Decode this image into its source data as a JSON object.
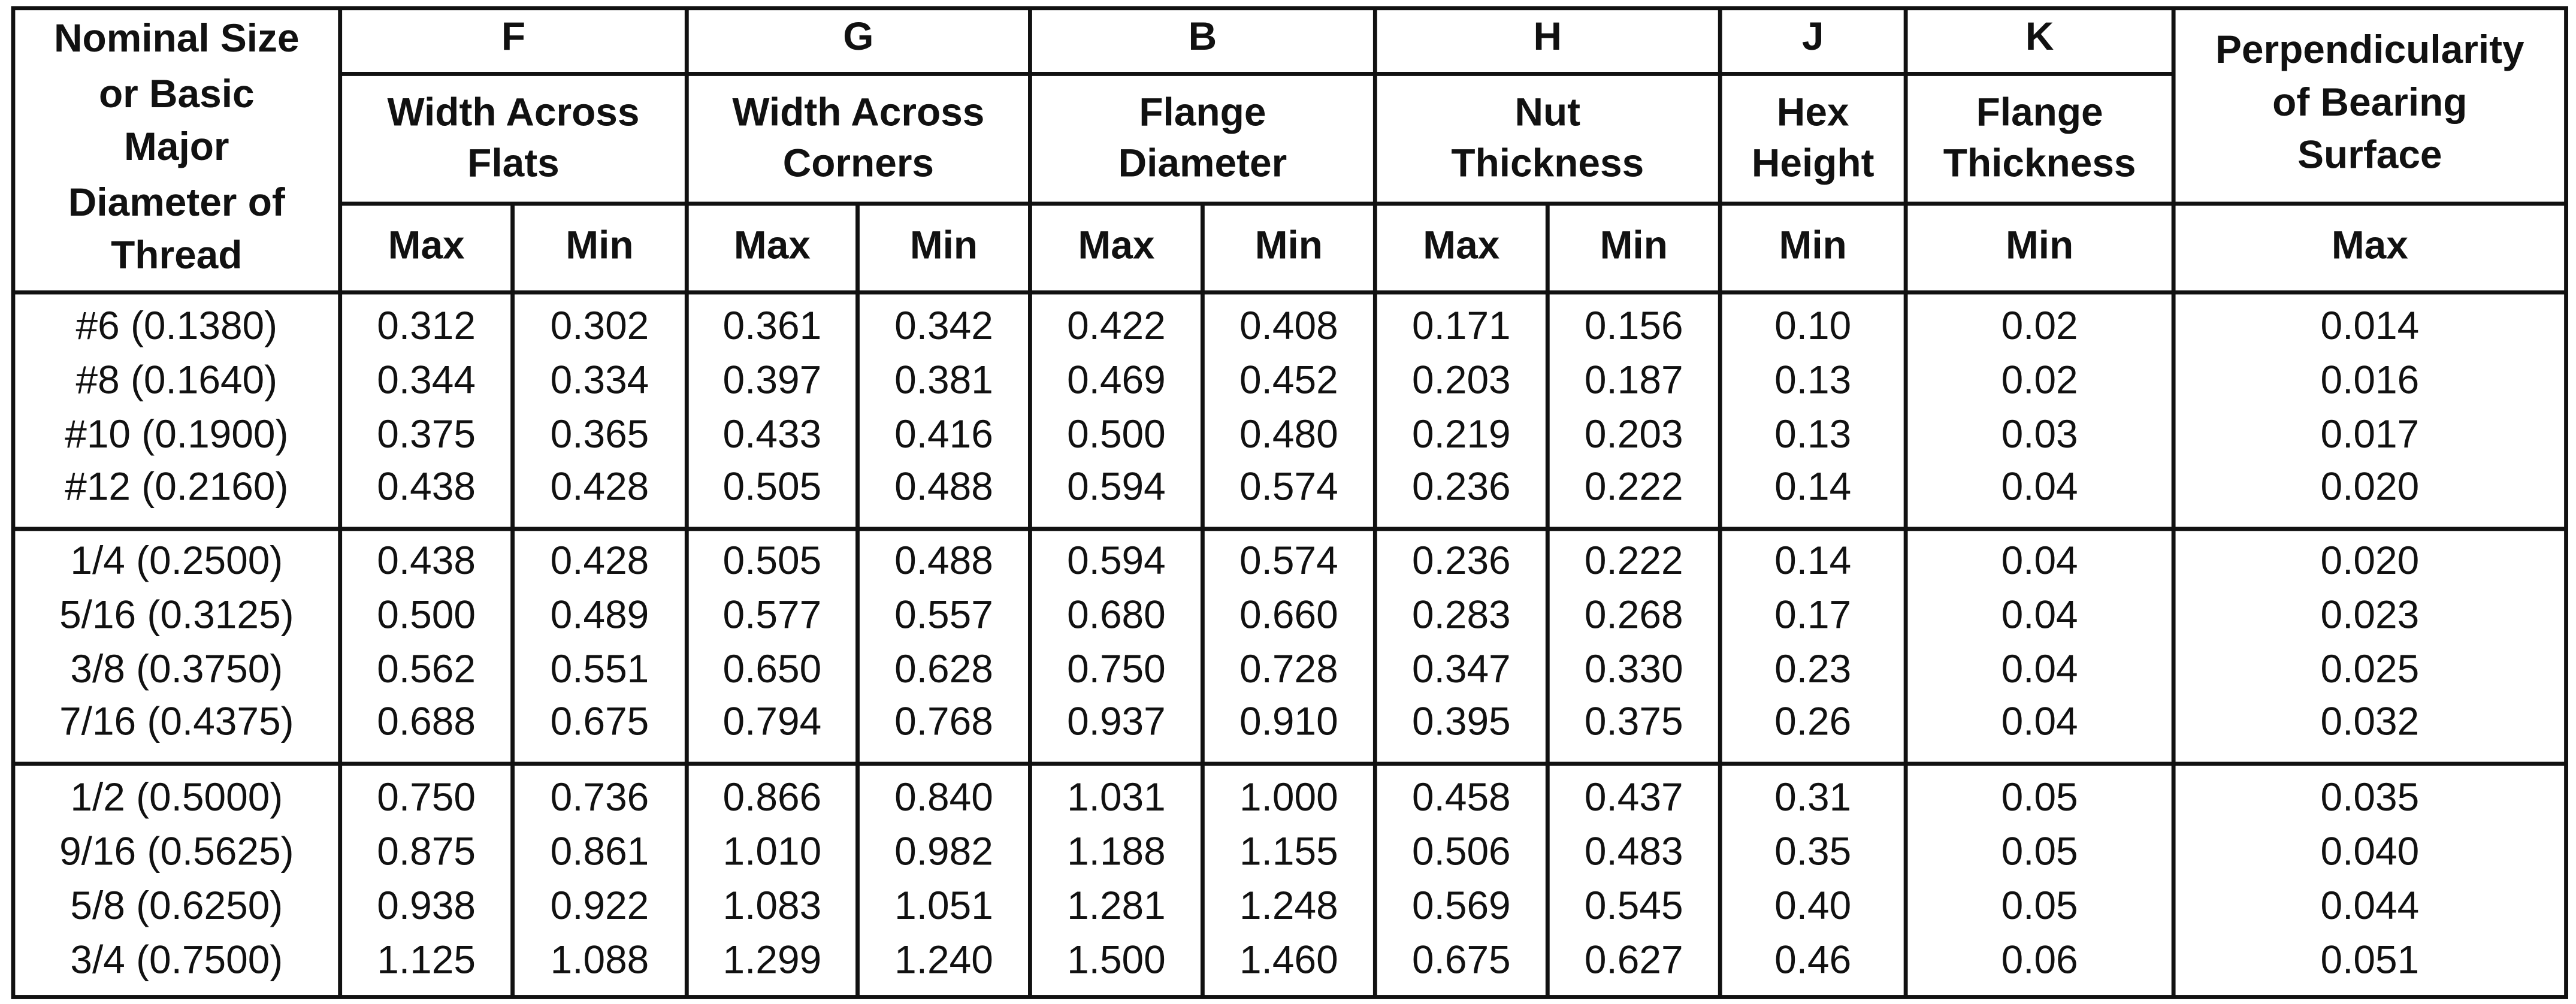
{
  "header": {
    "first_column": [
      "Nominal Size",
      "or Basic",
      "Major",
      "Diameter of",
      "Thread"
    ],
    "columns": [
      {
        "letter": "F",
        "label": [
          "Width Across",
          "Flats"
        ],
        "subheads": [
          "Max",
          "Min"
        ]
      },
      {
        "letter": "G",
        "label": [
          "Width Across",
          "Corners"
        ],
        "subheads": [
          "Max",
          "Min"
        ]
      },
      {
        "letter": "B",
        "label": [
          "Flange",
          "Diameter"
        ],
        "subheads": [
          "Max",
          "Min"
        ]
      },
      {
        "letter": "H",
        "label": [
          "Nut",
          "Thickness"
        ],
        "subheads": [
          "Max",
          "Min"
        ]
      },
      {
        "letter": "J",
        "label": [
          "Hex",
          "Height"
        ],
        "subheads": [
          "Min"
        ]
      },
      {
        "letter": "K",
        "label": [
          "Flange",
          "Thickness"
        ],
        "subheads": [
          "Min"
        ]
      },
      {
        "label": [
          "Perpendicularity",
          "of Bearing",
          "Surface"
        ],
        "subheads": [
          "Max"
        ]
      }
    ]
  },
  "table": {
    "row_groups": [
      [
        [
          "#6 (0.1380)",
          "0.312",
          "0.302",
          "0.361",
          "0.342",
          "0.422",
          "0.408",
          "0.171",
          "0.156",
          "0.10",
          "0.02",
          "0.014"
        ],
        [
          "#8 (0.1640)",
          "0.344",
          "0.334",
          "0.397",
          "0.381",
          "0.469",
          "0.452",
          "0.203",
          "0.187",
          "0.13",
          "0.02",
          "0.016"
        ],
        [
          "#10 (0.1900)",
          "0.375",
          "0.365",
          "0.433",
          "0.416",
          "0.500",
          "0.480",
          "0.219",
          "0.203",
          "0.13",
          "0.03",
          "0.017"
        ],
        [
          "#12 (0.2160)",
          "0.438",
          "0.428",
          "0.505",
          "0.488",
          "0.594",
          "0.574",
          "0.236",
          "0.222",
          "0.14",
          "0.04",
          "0.020"
        ]
      ],
      [
        [
          "1/4 (0.2500)",
          "0.438",
          "0.428",
          "0.505",
          "0.488",
          "0.594",
          "0.574",
          "0.236",
          "0.222",
          "0.14",
          "0.04",
          "0.020"
        ],
        [
          "5/16 (0.3125)",
          "0.500",
          "0.489",
          "0.577",
          "0.557",
          "0.680",
          "0.660",
          "0.283",
          "0.268",
          "0.17",
          "0.04",
          "0.023"
        ],
        [
          "3/8 (0.3750)",
          "0.562",
          "0.551",
          "0.650",
          "0.628",
          "0.750",
          "0.728",
          "0.347",
          "0.330",
          "0.23",
          "0.04",
          "0.025"
        ],
        [
          "7/16 (0.4375)",
          "0.688",
          "0.675",
          "0.794",
          "0.768",
          "0.937",
          "0.910",
          "0.395",
          "0.375",
          "0.26",
          "0.04",
          "0.032"
        ]
      ],
      [
        [
          "1/2 (0.5000)",
          "0.750",
          "0.736",
          "0.866",
          "0.840",
          "1.031",
          "1.000",
          "0.458",
          "0.437",
          "0.31",
          "0.05",
          "0.035"
        ],
        [
          "9/16 (0.5625)",
          "0.875",
          "0.861",
          "1.010",
          "0.982",
          "1.188",
          "1.155",
          "0.506",
          "0.483",
          "0.35",
          "0.05",
          "0.040"
        ],
        [
          "5/8 (0.6250)",
          "0.938",
          "0.922",
          "1.083",
          "1.051",
          "1.281",
          "1.248",
          "0.569",
          "0.545",
          "0.40",
          "0.05",
          "0.044"
        ],
        [
          "3/4 (0.7500)",
          "1.125",
          "1.088",
          "1.299",
          "1.240",
          "1.500",
          "1.460",
          "0.675",
          "0.627",
          "0.46",
          "0.06",
          "0.051"
        ]
      ]
    ]
  }
}
